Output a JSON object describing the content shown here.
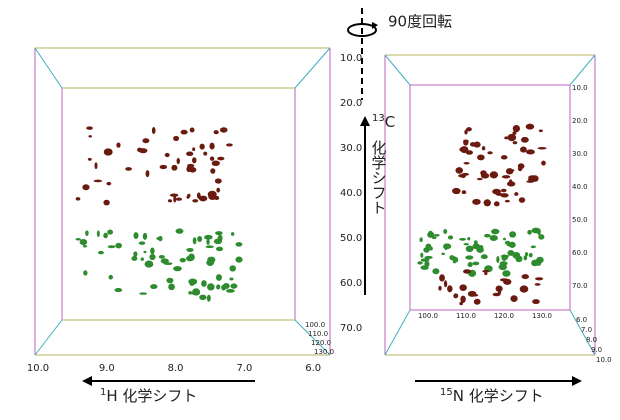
{
  "rotation_label": "90度回転",
  "left_panel": {
    "x_ticks": [
      "10.0",
      "9.0",
      "8.0",
      "7.0",
      "6.0"
    ],
    "y_ticks": [
      "10.0",
      "20.0",
      "30.0",
      "40.0",
      "50.0",
      "60.0",
      "70.0"
    ],
    "depth_ticks": [
      "100.0",
      "110.0",
      "120.0",
      "130.0"
    ],
    "x_axis": {
      "sup": "1",
      "label": "H 化学シフト"
    }
  },
  "vertical_axis": {
    "sup": "13",
    "main": "C",
    "vertical": "化学シフト"
  },
  "right_panel": {
    "x_ticks": [
      "100.0",
      "110.0",
      "120.0",
      "130.0"
    ],
    "y_ticks": [
      "10.0",
      "20.0",
      "30.0",
      "40.0",
      "50.0",
      "60.0",
      "70.0"
    ],
    "depth_ticks": [
      "6.0",
      "7.0",
      "8.0",
      "9.0",
      "10.0"
    ],
    "x_axis": {
      "sup": "15",
      "label": "N 化学シフト"
    }
  }
}
